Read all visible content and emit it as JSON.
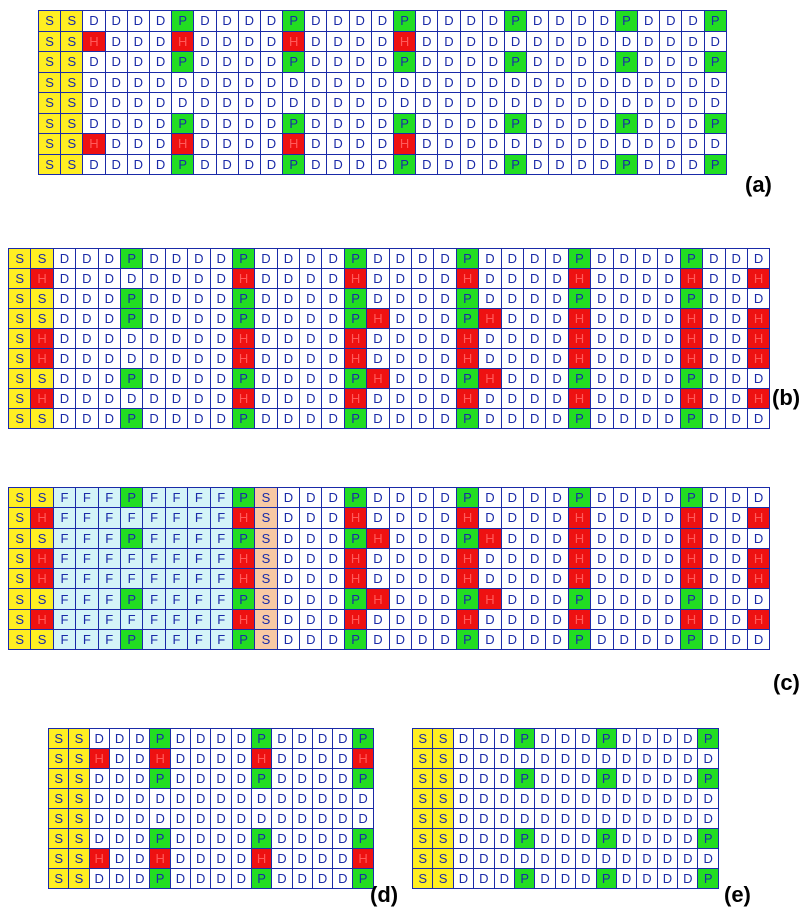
{
  "legend_codes": [
    "S",
    "D",
    "P",
    "H",
    "F"
  ],
  "colors": {
    "S": "#ffee22",
    "P": "#22dd22",
    "H": "#ee1111",
    "D": "#ffffff",
    "F": "#d4f4f8",
    "Sp": "#f8c9a4",
    "grid_line": "#1a2aa8",
    "text": "#1a2aa8"
  },
  "panels": [
    {
      "label": "(a)",
      "rows": [
        "S S D D D D P D D D D P D D D D P D D D D P D D D D P D D D P",
        "S S H D D D H D D D D H D D D D H D D D D D D D D D D D D D D",
        "S S D D D D P D D D D P D D D D P D D D D P D D D D P D D D P",
        "S S D D D D D D D D D D D D D D D D D D D D D D D D D D D D D",
        "S S D D D D D D D D D D D D D D D D D D D D D D D D D D D D D",
        "S S D D D D P D D D D P D D D D P D D D D P D D D D P D D D P",
        "S S H D D D H D D D D H D D D D H D D D D D D D D D D D D D D",
        "S S D D D D P D D D D P D D D D P D D D D P D D D D P D D D P"
      ]
    },
    {
      "label": "(b)",
      "rows": [
        "S S D D D P D D D D P D D D D P D D D D P D D D D P D D D D P D D D",
        "S H D D D D D D D D H D D D D H D D D D H D D D D H D D D D H D D H",
        "S S D D D P D D D D P D D D D P D D D D P D D D D P D D D D P D D D",
        "S S D D D P D D D D P D D D D P H D D D P H D D D H D D D D H D D H",
        "S H D D D D D D D D H D D D D H D D D D H D D D D H D D D D H D D H",
        "S H D D D D D D D D H D D D D H D D D D H D D D D H D D D D H D D H",
        "S S D D D P D D D D P D D D D P H D D D P H D D D P D D D D P D D D",
        "S H D D D D D D D D H D D D D H D D D D H D D D D H D D D D H D D H",
        "S S D D D P D D D D P D D D D P D D D D P D D D D P D D D D P D D D"
      ]
    },
    {
      "label": "(c)",
      "rows": [
        "S S F F F P F F F F P Sp D D D P D D D D P D D D D P D D D D P D D D",
        "S H F F F F F F F F H Sp D D D H D D D D H D D D D H D D D D H D D H",
        "S S F F F P F F F F P Sp D D D P H D D D P H D D D H D D D D H D D D",
        "S H F F F F F F F F H Sp D D D H D D D D H D D D D H D D D D H D D H",
        "S H F F F F F F F F H Sp D D D H D D D D H D D D D H D D D D H D D H",
        "S S F F F P F F F F P Sp D D D P H D D D P H D D D P D D D D P D D D",
        "S H F F F F F F F F H Sp D D D H D D D D H D D D D H D D D D H D D H",
        "S S F F F P F F F F P Sp D D D P D D D D P D D D D P D D D D P D D D"
      ]
    },
    {
      "label": "(d)",
      "rows": [
        "S S D D D P D D D D P D D D D P",
        "S S H D D H D D D D H D D D D H",
        "S S D D D P D D D D P D D D D P",
        "S S D D D D D D D D D D D D D D",
        "S S D D D D D D D D D D D D D D",
        "S S D D D P D D D D P D D D D P",
        "S S H D D H D D D D H D D D D H",
        "S S D D D P D D D D P D D D D P"
      ]
    },
    {
      "label": "(e)",
      "rows": [
        "S S D D D P D D D P D D D D P",
        "S S D D D D D D D D D D D D D",
        "S S D D D P D D D P D D D D P",
        "S S D D D D D D D D D D D D D",
        "S S D D D D D D D D D D D D D",
        "S S D D D P D D D P D D D D P",
        "S S D D D D D D D D D D D D D",
        "S S D D D P D D D P D D D D P"
      ]
    }
  ]
}
